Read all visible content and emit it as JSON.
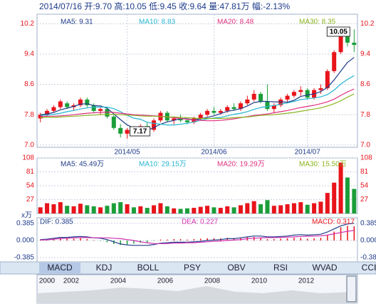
{
  "header": "2014/07/16 开:9.70 高:10.05 低:9.45 收:9.64 量:47.81万 幅:-2.13%",
  "chart_data": [
    {
      "type": "candlestick",
      "categories": [
        null,
        null,
        null,
        null,
        null,
        null,
        null,
        null,
        null,
        null,
        null,
        null,
        null,
        "2014/05",
        null,
        null,
        null,
        null,
        null,
        null,
        null,
        null,
        null,
        null,
        null,
        null,
        "2014/06",
        null,
        null,
        null,
        null,
        null,
        null,
        null,
        null,
        null,
        null,
        null,
        null,
        null,
        "2014/07",
        null,
        null,
        null,
        null,
        null,
        null,
        null
      ],
      "ohlc": [
        [
          7.7,
          7.85,
          7.6,
          7.8
        ],
        [
          7.8,
          7.95,
          7.75,
          7.9
        ],
        [
          7.9,
          8.05,
          7.85,
          8.0
        ],
        [
          8.0,
          8.2,
          7.95,
          8.15
        ],
        [
          8.1,
          8.15,
          7.95,
          8.0
        ],
        [
          8.0,
          8.1,
          7.9,
          8.05
        ],
        [
          8.05,
          8.25,
          8.0,
          8.2
        ],
        [
          8.2,
          8.25,
          8.0,
          8.05
        ],
        [
          8.05,
          8.1,
          7.85,
          7.9
        ],
        [
          7.9,
          8.0,
          7.8,
          7.95
        ],
        [
          7.95,
          8.0,
          7.7,
          7.75
        ],
        [
          7.75,
          7.8,
          7.4,
          7.45
        ],
        [
          7.45,
          7.55,
          7.2,
          7.3
        ],
        [
          7.3,
          7.45,
          7.17,
          7.4
        ],
        [
          7.4,
          7.5,
          7.3,
          7.35
        ],
        [
          7.35,
          7.55,
          7.3,
          7.5
        ],
        [
          7.5,
          7.6,
          7.35,
          7.4
        ],
        [
          7.4,
          7.7,
          7.35,
          7.65
        ],
        [
          7.65,
          7.9,
          7.6,
          7.85
        ],
        [
          7.85,
          7.9,
          7.6,
          7.65
        ],
        [
          7.65,
          7.75,
          7.55,
          7.7
        ],
        [
          7.7,
          7.8,
          7.6,
          7.65
        ],
        [
          7.65,
          7.7,
          7.55,
          7.6
        ],
        [
          7.6,
          7.75,
          7.55,
          7.7
        ],
        [
          7.7,
          7.85,
          7.65,
          7.8
        ],
        [
          7.8,
          7.95,
          7.75,
          7.9
        ],
        [
          7.9,
          8.0,
          7.8,
          7.85
        ],
        [
          7.85,
          7.95,
          7.8,
          7.9
        ],
        [
          7.9,
          8.05,
          7.85,
          8.0
        ],
        [
          8.0,
          8.1,
          7.9,
          7.95
        ],
        [
          7.95,
          8.15,
          7.9,
          8.1
        ],
        [
          8.1,
          8.3,
          8.05,
          8.2
        ],
        [
          8.2,
          8.45,
          8.15,
          8.35
        ],
        [
          8.35,
          8.4,
          8.1,
          8.15
        ],
        [
          8.15,
          8.6,
          7.9,
          7.95
        ],
        [
          7.95,
          8.1,
          7.85,
          8.05
        ],
        [
          8.05,
          8.25,
          8.0,
          8.2
        ],
        [
          8.2,
          8.35,
          8.1,
          8.3
        ],
        [
          8.3,
          8.45,
          8.25,
          8.4
        ],
        [
          8.4,
          8.55,
          8.3,
          8.45
        ],
        [
          8.45,
          8.5,
          8.2,
          8.25
        ],
        [
          8.25,
          8.5,
          8.2,
          8.45
        ],
        [
          8.45,
          8.6,
          8.35,
          8.5
        ],
        [
          8.5,
          9.0,
          8.45,
          8.95
        ],
        [
          8.95,
          9.5,
          8.9,
          9.45
        ],
        [
          9.45,
          9.95,
          9.4,
          9.9
        ],
        [
          9.9,
          10.05,
          9.6,
          9.7
        ],
        [
          9.7,
          10.05,
          9.45,
          9.64
        ]
      ],
      "up_color": "#e8141b",
      "down_color": "#1b9e3a",
      "series": [
        {
          "name": "MA5: 9.31",
          "color": "#1f3c88",
          "values": [
            7.8,
            7.82,
            7.86,
            7.93,
            7.97,
            8.02,
            8.08,
            8.09,
            8.04,
            8.03,
            7.97,
            7.82,
            7.67,
            7.53,
            7.45,
            7.4,
            7.39,
            7.46,
            7.55,
            7.61,
            7.65,
            7.7,
            7.69,
            7.66,
            7.69,
            7.73,
            7.77,
            7.83,
            7.89,
            7.92,
            7.96,
            8.03,
            8.12,
            8.15,
            8.15,
            8.14,
            8.14,
            8.13,
            8.18,
            8.28,
            8.32,
            8.35,
            8.41,
            8.52,
            8.72,
            8.95,
            9.18,
            9.31
          ]
        },
        {
          "name": "MA10: 8.83",
          "color": "#26b5d1",
          "values": [
            7.78,
            7.79,
            7.81,
            7.84,
            7.88,
            7.91,
            7.95,
            7.98,
            8.0,
            8.0,
            8.0,
            7.96,
            7.88,
            7.78,
            7.71,
            7.68,
            7.6,
            7.57,
            7.55,
            7.53,
            7.53,
            7.55,
            7.57,
            7.61,
            7.65,
            7.69,
            7.71,
            7.73,
            7.77,
            7.81,
            7.84,
            7.88,
            7.94,
            7.99,
            8.02,
            8.04,
            8.08,
            8.11,
            8.15,
            8.2,
            8.22,
            8.24,
            8.27,
            8.33,
            8.45,
            8.61,
            8.73,
            8.83
          ]
        },
        {
          "name": "MA20: 8.48",
          "color": "#e0307f",
          "values": [
            7.75,
            7.76,
            7.76,
            7.77,
            7.78,
            7.8,
            7.82,
            7.84,
            7.85,
            7.86,
            7.87,
            7.86,
            7.84,
            7.82,
            7.8,
            7.79,
            7.78,
            7.77,
            7.76,
            7.74,
            7.72,
            7.7,
            7.68,
            7.66,
            7.65,
            7.64,
            7.64,
            7.65,
            7.67,
            7.69,
            7.72,
            7.75,
            7.78,
            7.8,
            7.82,
            7.85,
            7.88,
            7.91,
            7.95,
            7.99,
            8.02,
            8.05,
            8.09,
            8.14,
            8.21,
            8.31,
            8.4,
            8.48
          ]
        },
        {
          "name": "MA30: 8.35",
          "color": "#8cb31f",
          "values": [
            7.72,
            7.73,
            7.73,
            7.74,
            7.75,
            7.76,
            7.77,
            7.78,
            7.79,
            7.8,
            7.81,
            7.81,
            7.8,
            7.79,
            7.78,
            7.77,
            7.76,
            7.76,
            7.75,
            7.74,
            7.74,
            7.73,
            7.72,
            7.71,
            7.7,
            7.7,
            7.7,
            7.7,
            7.71,
            7.72,
            7.73,
            7.74,
            7.76,
            7.78,
            7.79,
            7.8,
            7.82,
            7.84,
            7.86,
            7.89,
            7.92,
            7.95,
            7.98,
            8.03,
            8.09,
            8.17,
            8.26,
            8.35
          ]
        }
      ],
      "annotations": [
        "7.17",
        "10.05"
      ],
      "ylim": [
        6.94,
        10.45
      ],
      "yticks": [
        {
          "value": 7.0,
          "label": "7.0"
        },
        7.8,
        8.6,
        9.4,
        10.2
      ],
      "grid": true
    },
    {
      "type": "volume",
      "values": [
        12,
        20,
        18,
        22,
        15,
        14,
        19,
        16,
        14,
        12,
        15,
        20,
        22,
        18,
        12,
        14,
        11,
        16,
        20,
        14,
        10,
        9,
        10,
        11,
        13,
        15,
        12,
        11,
        14,
        12,
        16,
        20,
        24,
        18,
        26,
        15,
        16,
        18,
        20,
        22,
        17,
        20,
        23,
        40,
        60,
        99,
        70,
        47.81
      ],
      "legend": [
        "MA5: 45.49万",
        "MA10: 29.15万",
        "MA20: 19.29万",
        "MA30: 15.50万"
      ],
      "unit_label": "x万",
      "ylim": [
        0,
        108
      ],
      "yticks": [
        27,
        54,
        81,
        108
      ]
    },
    {
      "type": "macd",
      "series": [
        {
          "name": "DIF: 0.385",
          "color": "#1f3c88",
          "values": [
            0.02,
            0.03,
            0.05,
            0.07,
            0.07,
            0.08,
            0.09,
            0.08,
            0.06,
            0.05,
            0.02,
            -0.03,
            -0.08,
            -0.1,
            -0.11,
            -0.11,
            -0.11,
            -0.09,
            -0.06,
            -0.05,
            -0.04,
            -0.04,
            -0.04,
            -0.03,
            -0.02,
            0,
            0.01,
            0.02,
            0.04,
            0.04,
            0.06,
            0.08,
            0.1,
            0.1,
            0.08,
            0.08,
            0.09,
            0.1,
            0.12,
            0.13,
            0.12,
            0.13,
            0.14,
            0.19,
            0.26,
            0.33,
            0.37,
            0.385
          ]
        },
        {
          "name": "DEA: 0.227",
          "color": "#d12fb0",
          "values": [
            0.01,
            0.015,
            0.03,
            0.045,
            0.05,
            0.06,
            0.065,
            0.065,
            0.06,
            0.06,
            0.06,
            0.05,
            0.04,
            0.02,
            0,
            -0.03,
            -0.05,
            -0.07,
            -0.07,
            -0.07,
            -0.06,
            -0.06,
            -0.05,
            -0.05,
            -0.04,
            -0.03,
            -0.02,
            -0.01,
            0,
            0.01,
            0.02,
            0.04,
            0.05,
            0.06,
            0.065,
            0.065,
            0.07,
            0.075,
            0.08,
            0.09,
            0.095,
            0.1,
            0.105,
            0.12,
            0.15,
            0.18,
            0.205,
            0.227
          ]
        },
        {
          "name": "MACD: 0.317",
          "color": "#e8141b",
          "values": [
            0.02,
            0.03,
            0.04,
            0.05,
            0.04,
            0.04,
            0.05,
            0.03,
            0.01,
            -0.01,
            -0.04,
            -0.08,
            -0.1,
            -0.09,
            -0.07,
            -0.05,
            -0.04,
            -0.01,
            0.02,
            0.02,
            0.03,
            0.03,
            0.02,
            0.03,
            0.04,
            0.05,
            0.05,
            0.05,
            0.06,
            0.05,
            0.06,
            0.07,
            0.08,
            0.06,
            0.03,
            0.03,
            0.04,
            0.05,
            0.06,
            0.06,
            0.04,
            0.05,
            0.06,
            0.12,
            0.2,
            0.3,
            0.33,
            0.317
          ]
        }
      ],
      "down_color": "#1b9e3a",
      "ylim": [
        -0.48,
        0.51
      ],
      "yticks": [
        -0.385,
        {
          "value": 0,
          "label": "0.000"
        },
        0.385
      ]
    }
  ],
  "tabs": [
    "MACD",
    "KDJ",
    "BOLL",
    "PSY",
    "OBV",
    "RSI",
    "WVAD",
    "CCI"
  ],
  "navigator_years": [
    "2000",
    "2002",
    "2004",
    "2006",
    "2008",
    "2010",
    "2012"
  ]
}
